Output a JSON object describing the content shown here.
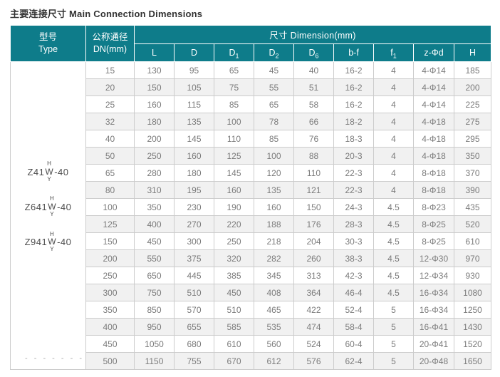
{
  "title": "主要连接尺寸 Main Connection Dimensions",
  "colors": {
    "header_bg": "#0e7c8a",
    "header_text": "#ffffff",
    "row_alt_bg": "#f1f1f1",
    "border": "#cccccc",
    "body_text": "#7b7b7b"
  },
  "table": {
    "header": {
      "type_line1": "型号",
      "type_line2": "Type",
      "dn_line1": "公称通径",
      "dn_line2": "DN(mm)",
      "dimension_label": "尺寸 Dimension(mm)",
      "columns": [
        {
          "base": "L",
          "sub": ""
        },
        {
          "base": "D",
          "sub": ""
        },
        {
          "base": "D",
          "sub": "1"
        },
        {
          "base": "D",
          "sub": "2"
        },
        {
          "base": "D",
          "sub": "6"
        },
        {
          "base": "b-f",
          "sub": ""
        },
        {
          "base": "f",
          "sub": "1"
        },
        {
          "base": "z-Φd",
          "sub": ""
        },
        {
          "base": "H",
          "sub": ""
        }
      ]
    },
    "models": [
      {
        "prefix": "Z41",
        "top": "H",
        "mid": "W",
        "bottom": "Y",
        "suffix": "-40"
      },
      {
        "prefix": "Z641",
        "top": "H",
        "mid": "W",
        "bottom": "Y",
        "suffix": "-40"
      },
      {
        "prefix": "Z941",
        "top": "H",
        "mid": "W",
        "bottom": "Y",
        "suffix": "-40"
      }
    ],
    "dashes": "- - - - - - -",
    "rows": [
      {
        "dn": "15",
        "values": [
          "130",
          "95",
          "65",
          "45",
          "40",
          "16-2",
          "4",
          "4-Φ14",
          "185"
        ]
      },
      {
        "dn": "20",
        "values": [
          "150",
          "105",
          "75",
          "55",
          "51",
          "16-2",
          "4",
          "4-Φ14",
          "200"
        ]
      },
      {
        "dn": "25",
        "values": [
          "160",
          "115",
          "85",
          "65",
          "58",
          "16-2",
          "4",
          "4-Φ14",
          "225"
        ]
      },
      {
        "dn": "32",
        "values": [
          "180",
          "135",
          "100",
          "78",
          "66",
          "18-2",
          "4",
          "4-Φ18",
          "275"
        ]
      },
      {
        "dn": "40",
        "values": [
          "200",
          "145",
          "110",
          "85",
          "76",
          "18-3",
          "4",
          "4-Φ18",
          "295"
        ]
      },
      {
        "dn": "50",
        "values": [
          "250",
          "160",
          "125",
          "100",
          "88",
          "20-3",
          "4",
          "4-Φ18",
          "350"
        ]
      },
      {
        "dn": "65",
        "values": [
          "280",
          "180",
          "145",
          "120",
          "110",
          "22-3",
          "4",
          "8-Φ18",
          "370"
        ]
      },
      {
        "dn": "80",
        "values": [
          "310",
          "195",
          "160",
          "135",
          "121",
          "22-3",
          "4",
          "8-Φ18",
          "390"
        ]
      },
      {
        "dn": "100",
        "values": [
          "350",
          "230",
          "190",
          "160",
          "150",
          "24-3",
          "4.5",
          "8-Φ23",
          "435"
        ]
      },
      {
        "dn": "125",
        "values": [
          "400",
          "270",
          "220",
          "188",
          "176",
          "28-3",
          "4.5",
          "8-Φ25",
          "520"
        ]
      },
      {
        "dn": "150",
        "values": [
          "450",
          "300",
          "250",
          "218",
          "204",
          "30-3",
          "4.5",
          "8-Φ25",
          "610"
        ]
      },
      {
        "dn": "200",
        "values": [
          "550",
          "375",
          "320",
          "282",
          "260",
          "38-3",
          "4.5",
          "12-Φ30",
          "970"
        ]
      },
      {
        "dn": "250",
        "values": [
          "650",
          "445",
          "385",
          "345",
          "313",
          "42-3",
          "4.5",
          "12-Φ34",
          "930"
        ]
      },
      {
        "dn": "300",
        "values": [
          "750",
          "510",
          "450",
          "408",
          "364",
          "46-4",
          "4.5",
          "16-Φ34",
          "1080"
        ]
      },
      {
        "dn": "350",
        "values": [
          "850",
          "570",
          "510",
          "465",
          "422",
          "52-4",
          "5",
          "16-Φ34",
          "1250"
        ]
      },
      {
        "dn": "400",
        "values": [
          "950",
          "655",
          "585",
          "535",
          "474",
          "58-4",
          "5",
          "16-Φ41",
          "1430"
        ]
      },
      {
        "dn": "450",
        "values": [
          "1050",
          "680",
          "610",
          "560",
          "524",
          "60-4",
          "5",
          "20-Φ41",
          "1520"
        ]
      },
      {
        "dn": "500",
        "values": [
          "1150",
          "755",
          "670",
          "612",
          "576",
          "62-4",
          "5",
          "20-Φ48",
          "1650"
        ]
      }
    ]
  }
}
